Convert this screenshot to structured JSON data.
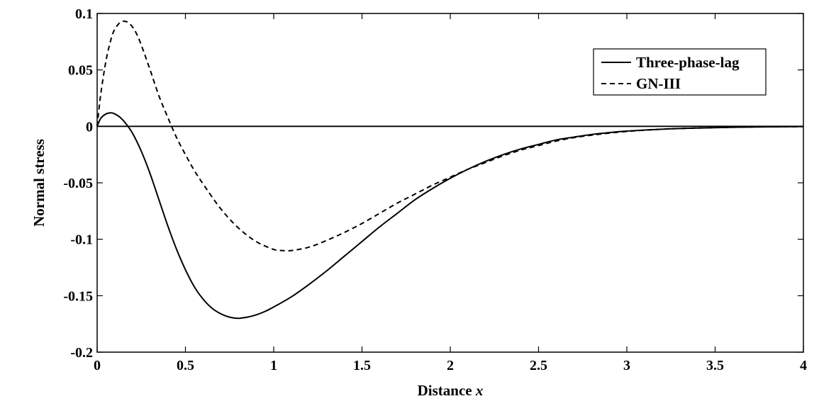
{
  "chart_data": {
    "type": "line",
    "xlabel": "Distance",
    "xlabel_var": "x",
    "ylabel": "Normal stress",
    "xlim": [
      0,
      4
    ],
    "ylim": [
      -0.2,
      0.1
    ],
    "xticks": [
      0,
      0.5,
      1,
      1.5,
      2,
      2.5,
      3,
      3.5,
      4
    ],
    "xtick_labels": [
      "0",
      "0.5",
      "1",
      "1.5",
      "2",
      "2.5",
      "3",
      "3.5",
      "4"
    ],
    "yticks": [
      -0.2,
      -0.15,
      -0.1,
      -0.05,
      0,
      0.05,
      0.1
    ],
    "ytick_labels": [
      "-0.2",
      "-0.15",
      "-0.1",
      "-0.05",
      "0",
      "0.05",
      "0.1"
    ],
    "grid": false,
    "legend_position": "top-right",
    "reference_line": {
      "y": 0,
      "style": "solid"
    },
    "series": [
      {
        "name": "Three-phase-lag",
        "style": "solid",
        "color": "#000000",
        "x": [
          0,
          0.02,
          0.05,
          0.08,
          0.1,
          0.13,
          0.16,
          0.2,
          0.25,
          0.3,
          0.35,
          0.4,
          0.45,
          0.5,
          0.55,
          0.6,
          0.65,
          0.7,
          0.75,
          0.8,
          0.85,
          0.9,
          0.95,
          1.0,
          1.1,
          1.2,
          1.3,
          1.4,
          1.5,
          1.6,
          1.7,
          1.8,
          1.9,
          2.0,
          2.1,
          2.2,
          2.3,
          2.4,
          2.5,
          2.6,
          2.7,
          2.8,
          2.9,
          3.0,
          3.2,
          3.4,
          3.6,
          3.8,
          4.0
        ],
        "y": [
          0,
          0.007,
          0.011,
          0.012,
          0.011,
          0.008,
          0.003,
          -0.006,
          -0.022,
          -0.042,
          -0.065,
          -0.088,
          -0.109,
          -0.127,
          -0.142,
          -0.153,
          -0.161,
          -0.166,
          -0.169,
          -0.17,
          -0.169,
          -0.167,
          -0.164,
          -0.16,
          -0.151,
          -0.14,
          -0.128,
          -0.115,
          -0.102,
          -0.089,
          -0.077,
          -0.065,
          -0.055,
          -0.046,
          -0.038,
          -0.031,
          -0.025,
          -0.02,
          -0.016,
          -0.012,
          -0.0095,
          -0.0072,
          -0.0055,
          -0.0042,
          -0.0025,
          -0.0015,
          -0.0008,
          -0.0004,
          -0.0002
        ]
      },
      {
        "name": "GN-III",
        "style": "dashed",
        "color": "#000000",
        "x": [
          0,
          0.02,
          0.05,
          0.08,
          0.1,
          0.13,
          0.16,
          0.19,
          0.22,
          0.25,
          0.3,
          0.35,
          0.4,
          0.45,
          0.5,
          0.55,
          0.6,
          0.7,
          0.8,
          0.9,
          1.0,
          1.05,
          1.1,
          1.2,
          1.3,
          1.4,
          1.5,
          1.6,
          1.7,
          1.8,
          1.9,
          2.0,
          2.1,
          2.2,
          2.3,
          2.4,
          2.5,
          2.6,
          2.7,
          2.8,
          2.9,
          3.0,
          3.2,
          3.4,
          3.6,
          3.8,
          4.0
        ],
        "y": [
          0,
          0.028,
          0.058,
          0.078,
          0.086,
          0.092,
          0.093,
          0.09,
          0.083,
          0.072,
          0.05,
          0.027,
          0.008,
          -0.01,
          -0.025,
          -0.039,
          -0.051,
          -0.073,
          -0.09,
          -0.102,
          -0.109,
          -0.11,
          -0.11,
          -0.107,
          -0.101,
          -0.094,
          -0.086,
          -0.077,
          -0.068,
          -0.06,
          -0.052,
          -0.045,
          -0.038,
          -0.032,
          -0.026,
          -0.021,
          -0.017,
          -0.013,
          -0.01,
          -0.0078,
          -0.006,
          -0.0045,
          -0.0025,
          -0.0015,
          -0.0008,
          -0.0004,
          -0.0002
        ]
      }
    ]
  }
}
